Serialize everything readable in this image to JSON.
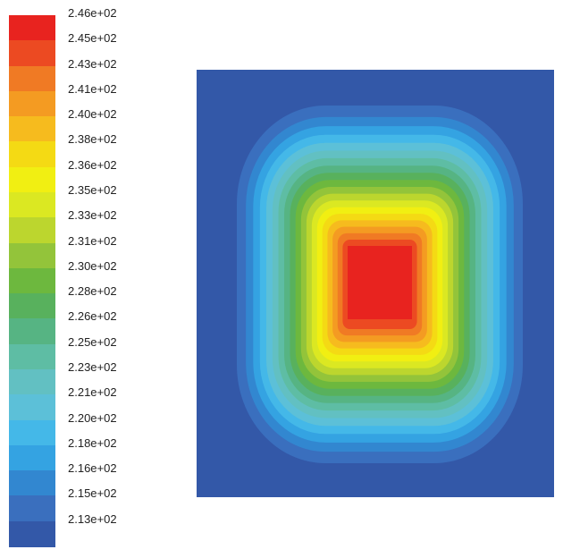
{
  "chart_data": {
    "type": "heatmap",
    "title": "",
    "xlabel": "",
    "ylabel": "",
    "colorbar": {
      "position": "left",
      "levels": [
        {
          "label": "2.46e+02",
          "value": 246,
          "color": "#e8231f"
        },
        {
          "label": "2.45e+02",
          "value": 245,
          "color": "#ec4a22"
        },
        {
          "label": "2.43e+02",
          "value": 243,
          "color": "#f07a24"
        },
        {
          "label": "2.41e+02",
          "value": 241,
          "color": "#f49b22"
        },
        {
          "label": "2.40e+02",
          "value": 240,
          "color": "#f6bb1e"
        },
        {
          "label": "2.38e+02",
          "value": 238,
          "color": "#f4da14"
        },
        {
          "label": "2.36e+02",
          "value": 236,
          "color": "#f1ef12"
        },
        {
          "label": "2.35e+02",
          "value": 235,
          "color": "#dbe822"
        },
        {
          "label": "2.33e+02",
          "value": 233,
          "color": "#bcd62e"
        },
        {
          "label": "2.31e+02",
          "value": 231,
          "color": "#93c43a"
        },
        {
          "label": "2.30e+02",
          "value": 230,
          "color": "#6db83e"
        },
        {
          "label": "2.28e+02",
          "value": 228,
          "color": "#58b15d"
        },
        {
          "label": "2.26e+02",
          "value": 226,
          "color": "#56b483"
        },
        {
          "label": "2.25e+02",
          "value": 225,
          "color": "#5ebda4"
        },
        {
          "label": "2.23e+02",
          "value": 223,
          "color": "#62c0c2"
        },
        {
          "label": "2.21e+02",
          "value": 221,
          "color": "#5cc0d8"
        },
        {
          "label": "2.20e+02",
          "value": 220,
          "color": "#44b8e8"
        },
        {
          "label": "2.18e+02",
          "value": 218,
          "color": "#34a3e2"
        },
        {
          "label": "2.16e+02",
          "value": 216,
          "color": "#3287d0"
        },
        {
          "label": "2.15e+02",
          "value": 215,
          "color": "#3a6fbe"
        },
        {
          "label": "2.13e+02",
          "value": 213,
          "color": "#3358a8"
        }
      ]
    },
    "field": {
      "min_value": 213,
      "max_value": 246,
      "background_color": "#3358a8",
      "hot_region_color": "#e8231f"
    }
  }
}
